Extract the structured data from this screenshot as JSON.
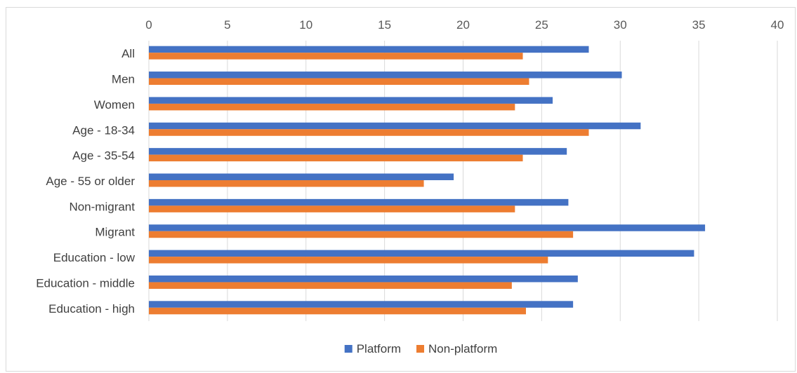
{
  "chart_data": {
    "type": "bar",
    "orientation": "horizontal",
    "categories": [
      "All",
      "Men",
      "Women",
      "Age - 18-34",
      "Age - 35-54",
      "Age - 55 or older",
      "Non-migrant",
      "Migrant",
      "Education - low",
      "Education - middle",
      "Education - high"
    ],
    "series": [
      {
        "name": "Platform",
        "color": "#4472C4",
        "values": [
          28.0,
          30.1,
          25.7,
          31.3,
          26.6,
          19.4,
          26.7,
          35.4,
          34.7,
          27.3,
          27.0
        ]
      },
      {
        "name": "Non-platform",
        "color": "#ED7D31",
        "values": [
          23.8,
          24.2,
          23.3,
          28.0,
          23.8,
          17.5,
          23.3,
          27.0,
          25.4,
          23.1,
          24.0
        ]
      }
    ],
    "xlim": [
      0,
      40
    ],
    "xticks": [
      0,
      5,
      10,
      15,
      20,
      25,
      30,
      35,
      40
    ],
    "x_axis_position": "top",
    "grid": true,
    "legend": "bottom",
    "title": "",
    "xlabel": "",
    "ylabel": ""
  }
}
